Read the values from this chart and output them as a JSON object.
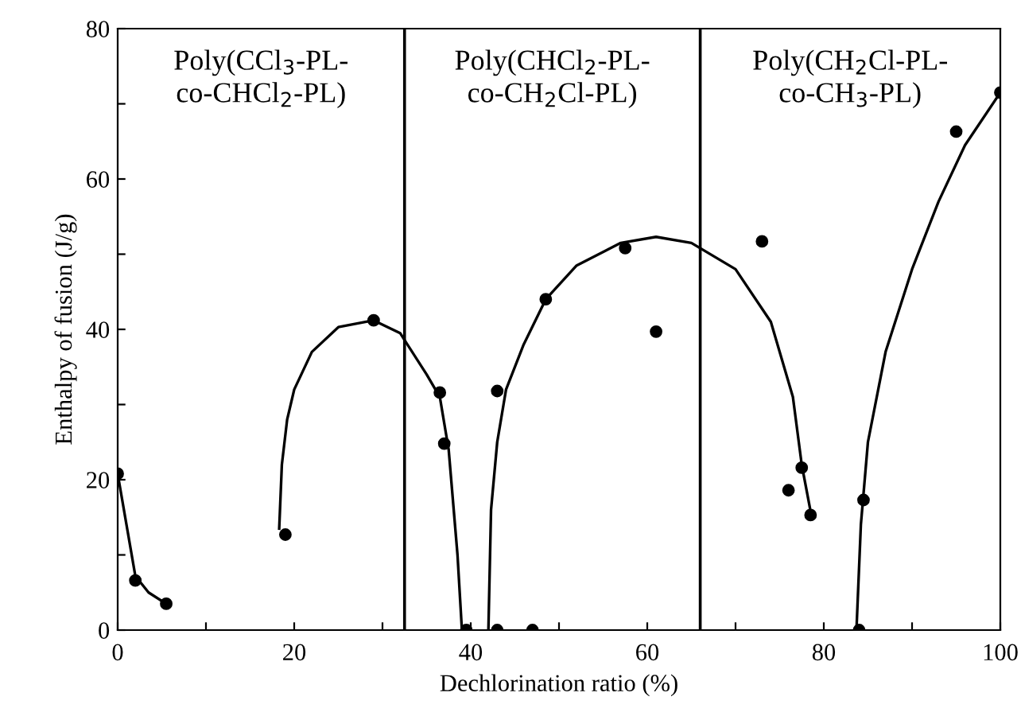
{
  "chart_data": {
    "type": "scatter",
    "xlabel": "Dechlorination ratio (%)",
    "ylabel": "Enthalpy of fusion (J/g)",
    "xlim": [
      0,
      100
    ],
    "ylim": [
      0,
      80
    ],
    "xticks": [
      0,
      {
        "value": 10,
        "label": null
      },
      20,
      {
        "value": 30,
        "label": null
      },
      40,
      {
        "value": 50,
        "label": null
      },
      60,
      {
        "value": 70,
        "label": null
      },
      80,
      {
        "value": 90,
        "label": null
      },
      100
    ],
    "yticks": [
      0,
      {
        "value": 10,
        "label": null
      },
      20,
      {
        "value": 30,
        "label": null
      },
      40,
      {
        "value": 50,
        "label": null
      },
      60,
      {
        "value": 70,
        "label": null
      },
      80
    ],
    "grid": false,
    "series": [
      {
        "marker": "circle",
        "color": "#000000",
        "x": [
          0,
          2,
          5.5,
          19,
          29,
          36.5,
          37,
          39.5,
          43,
          43,
          47,
          48.5,
          57.5,
          61,
          73,
          76,
          77.5,
          78.5,
          84,
          84.5,
          95,
          100
        ],
        "values": [
          20.8,
          6.6,
          3.5,
          12.7,
          41.2,
          31.6,
          24.8,
          0,
          31.8,
          0,
          0,
          44,
          50.8,
          39.7,
          51.7,
          18.6,
          21.6,
          15.3,
          0,
          17.3,
          66.3,
          71.5
        ]
      },
      {
        "type": "line",
        "marker": "none",
        "color": "#000000",
        "x": [
          0,
          1,
          2,
          3.5,
          5.5
        ],
        "values": [
          20.8,
          14,
          7.2,
          5,
          3.5
        ]
      },
      {
        "type": "line",
        "marker": "none",
        "color": "#000000",
        "x": [
          18.3,
          18.6,
          19.2,
          20,
          22,
          25,
          29,
          32,
          35,
          36.5,
          37.5,
          38.5,
          39
        ],
        "values": [
          13.5,
          22,
          28,
          32,
          37,
          40.3,
          41.2,
          39.5,
          34,
          31,
          24,
          10,
          0
        ]
      },
      {
        "type": "line",
        "marker": "none",
        "color": "#000000",
        "x": [
          42,
          42.3,
          43,
          44,
          46,
          48.5,
          52,
          57,
          61,
          65,
          70,
          74,
          76.5,
          77.5,
          78.5
        ],
        "values": [
          0,
          16,
          25,
          32,
          38,
          44,
          48.5,
          51.5,
          52.3,
          51.5,
          48,
          41,
          31,
          22,
          15.8
        ]
      },
      {
        "type": "line",
        "marker": "none",
        "color": "#000000",
        "x": [
          83.7,
          84.2,
          85,
          87,
          90,
          93,
          96,
          100
        ],
        "values": [
          0,
          14,
          25,
          37,
          48,
          57,
          64.5,
          71.5
        ]
      }
    ],
    "ref_lines": [
      {
        "axis": "x",
        "value": 32.5,
        "color": "#000000"
      },
      {
        "axis": "x",
        "value": 66,
        "color": "#000000"
      }
    ],
    "annotations": [
      "Poly(CCl$_{3}$-PL-\nco-CHCl$_{2}$-PL)",
      "Poly(CHCl$_{2}$-PL-\nco-CH$_{2}$Cl-PL)",
      "Poly(CH$_{2}$Cl-PL-\nco-CH$_{3}$-PL)"
    ]
  }
}
